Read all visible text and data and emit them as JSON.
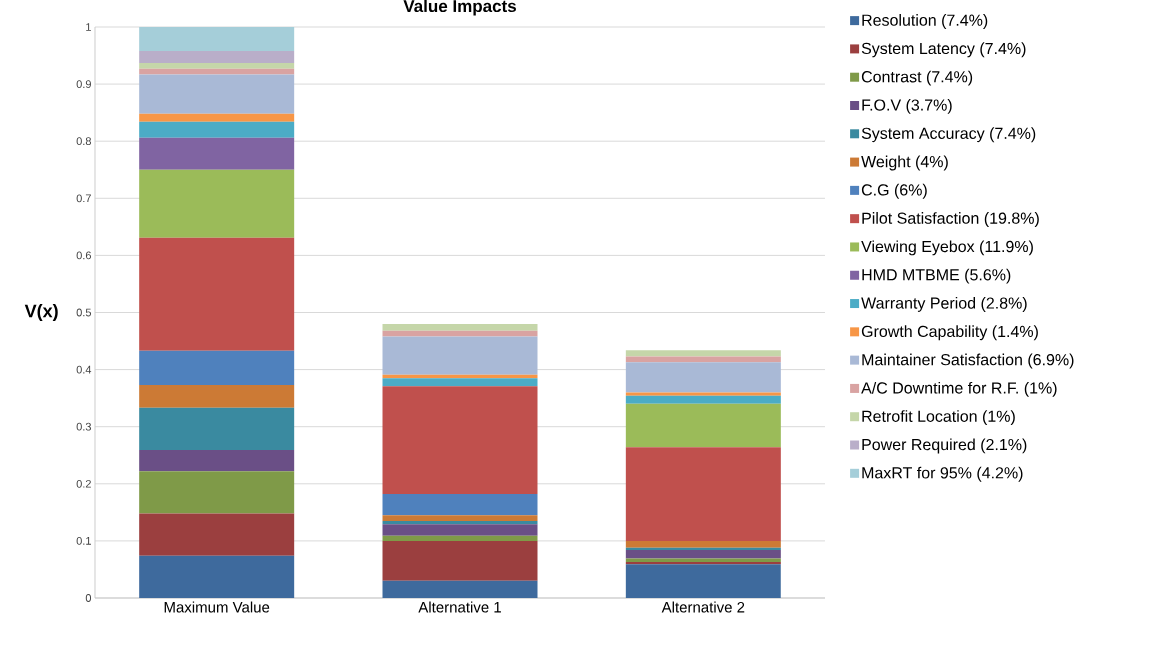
{
  "chart_data": {
    "type": "bar",
    "title": "Value Impacts",
    "ylabel": "V(x)",
    "stacked": true,
    "categories": [
      "Maximum Value",
      "Alternative 1",
      "Alternative 2"
    ],
    "ylim": [
      0,
      1
    ],
    "yticks": [
      0,
      0.1,
      0.2,
      0.3,
      0.4,
      0.5,
      0.6,
      0.7,
      0.8,
      0.9,
      1
    ],
    "grid": "y",
    "legend": "right",
    "series": [
      {
        "name": "Resolution (7.4%)",
        "color": "#3e6a9d",
        "values": [
          0.074,
          0.03,
          0.059
        ]
      },
      {
        "name": "System Latency (7.4%)",
        "color": "#9b3f3f",
        "values": [
          0.074,
          0.07,
          0.004
        ]
      },
      {
        "name": "Contrast (7.4%)",
        "color": "#7f9a48",
        "values": [
          0.074,
          0.009,
          0.006
        ]
      },
      {
        "name": "F.O.V (3.7%)",
        "color": "#6a4f86",
        "values": [
          0.037,
          0.02,
          0.015
        ]
      },
      {
        "name": "System Accuracy (7.4%)",
        "color": "#3a8aa0",
        "values": [
          0.074,
          0.006,
          0.004
        ]
      },
      {
        "name": "Weight (4%)",
        "color": "#cc7a35",
        "values": [
          0.04,
          0.01,
          0.012
        ]
      },
      {
        "name": "C.G (6%)",
        "color": "#4f81bd",
        "values": [
          0.06,
          0.037,
          0
        ]
      },
      {
        "name": "Pilot Satisfaction (19.8%)",
        "color": "#c0504d",
        "values": [
          0.198,
          0.189,
          0.164
        ]
      },
      {
        "name": "Viewing Eyebox (11.9%)",
        "color": "#9bbb59",
        "values": [
          0.119,
          0,
          0.076
        ]
      },
      {
        "name": "HMD MTBME (5.6%)",
        "color": "#8064a2",
        "values": [
          0.056,
          0,
          0
        ]
      },
      {
        "name": "Warranty Period (2.8%)",
        "color": "#4bacc6",
        "values": [
          0.028,
          0.014,
          0.014
        ]
      },
      {
        "name": "Growth Capability (1.4%)",
        "color": "#f79646",
        "values": [
          0.014,
          0.006,
          0.006
        ]
      },
      {
        "name": "Maintainer Satisfaction (6.9%)",
        "color": "#a9b9d6",
        "values": [
          0.069,
          0.067,
          0.053
        ]
      },
      {
        "name": "A/C Downtime for R.F. (1%)",
        "color": "#d9a3a2",
        "values": [
          0.01,
          0.01,
          0.01
        ]
      },
      {
        "name": "Retrofit Location (1%)",
        "color": "#c5d6a9",
        "values": [
          0.01,
          0.012,
          0.011
        ]
      },
      {
        "name": "Power Required (2.1%)",
        "color": "#b9aec9",
        "values": [
          0.021,
          0,
          0
        ]
      },
      {
        "name": "MaxRT for 95% (4.2%)",
        "color": "#a5ced9",
        "values": [
          0.042,
          0,
          0
        ]
      }
    ]
  }
}
